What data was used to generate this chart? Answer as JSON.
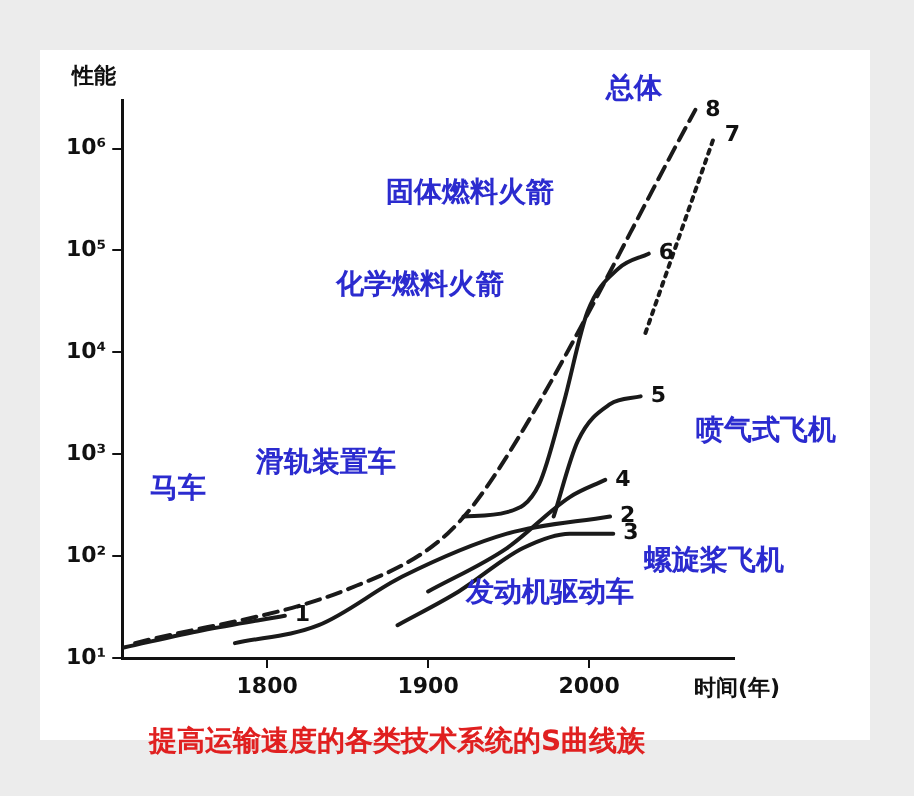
{
  "chart_data": {
    "type": "line",
    "title": "提高运输速度的各类技术系统的S曲线族",
    "xlabel": "时间(年)",
    "ylabel": "性能",
    "log": "y",
    "grid": false,
    "legend": false,
    "xlim": [
      1710,
      2090
    ],
    "xticks": [
      1800,
      1900,
      2000
    ],
    "ylim": [
      10,
      3000000
    ],
    "yticks": [
      {
        "value": 10,
        "label": "10¹"
      },
      {
        "value": 100,
        "label": "10²"
      },
      {
        "value": 1000,
        "label": "10³"
      },
      {
        "value": 10000,
        "label": "10⁴"
      },
      {
        "value": 100000,
        "label": "10⁵"
      },
      {
        "value": 1000000,
        "label": "10⁶"
      }
    ],
    "series": [
      {
        "name": "1",
        "color": "#1a1a1a",
        "line_style": "solid",
        "x": [
          1711,
          1760,
          1811
        ],
        "values": [
          12.7,
          18.7,
          26
        ]
      },
      {
        "name": "2",
        "color": "#1a1a1a",
        "line_style": "solid",
        "x": [
          1780,
          1832,
          1884,
          1949,
          2013
        ],
        "values": [
          14,
          21,
          63,
          166,
          245
        ]
      },
      {
        "name": "3",
        "color": "#1a1a1a",
        "line_style": "solid",
        "x": [
          1881,
          1919,
          1959,
          1988,
          2015
        ],
        "values": [
          21,
          45,
          120,
          166,
          166
        ]
      },
      {
        "name": "4",
        "color": "#1a1a1a",
        "line_style": "solid",
        "x": [
          1900,
          1949,
          1988,
          2010
        ],
        "values": [
          45,
          120,
          380,
          560
        ]
      },
      {
        "name": "5",
        "color": "#1a1a1a",
        "line_style": "solid",
        "x": [
          1978,
          1993,
          2013,
          2032
        ],
        "values": [
          245,
          1350,
          3100,
          3700
        ]
      },
      {
        "name": "6",
        "color": "#1a1a1a",
        "line_style": "solid",
        "x": [
          1922,
          1949,
          1969,
          1984,
          1999,
          2018,
          2037
        ],
        "values": [
          245,
          270,
          510,
          3100,
          25000,
          66000,
          93000
        ]
      },
      {
        "name": "7",
        "color": "#1a1a1a",
        "line_style": "dotted",
        "x": [
          2035,
          2078
        ],
        "values": [
          15500,
          1350000
        ]
      },
      {
        "name": "8",
        "color": "#1a1a1a",
        "line_style": "dashed",
        "x": [
          1718,
          1851,
          1912,
          1944,
          2066
        ],
        "values": [
          14,
          48,
          166,
          720,
          2400000
        ]
      }
    ],
    "annotations": [
      "总体",
      "马车",
      "滑轨装置车",
      "发动机驱动车",
      "螺旋桨飞机",
      "喷气式飞机",
      "化学燃料火箭",
      "固体燃料火箭"
    ]
  }
}
